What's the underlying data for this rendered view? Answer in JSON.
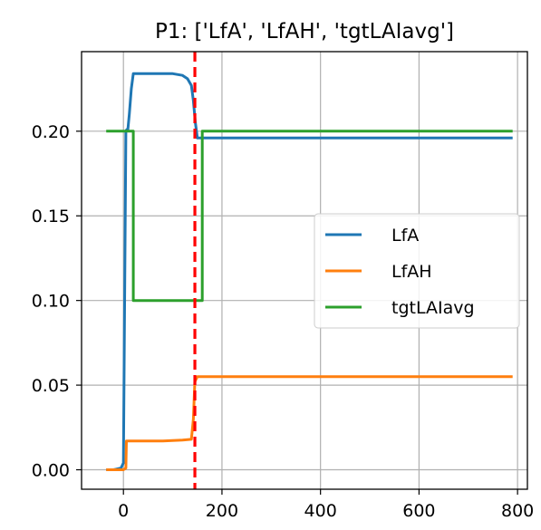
{
  "chart_data": {
    "type": "line",
    "title": "P1: ['LfA', 'LfAH', 'tgtLAIavg']",
    "xlabel": "",
    "ylabel": "",
    "xlim": [
      -85,
      820
    ],
    "ylim": [
      -0.0115,
      0.247
    ],
    "grid": true,
    "legend_placement": "center-right",
    "x_ticks": [
      0,
      200,
      400,
      600,
      800
    ],
    "x_tick_labels": [
      "0",
      "200",
      "400",
      "600",
      "800"
    ],
    "y_ticks": [
      0.0,
      0.05,
      0.1,
      0.15,
      0.2
    ],
    "y_tick_labels": [
      "0.00",
      "0.05",
      "0.10",
      "0.15",
      "0.20"
    ],
    "vline": {
      "x": 145,
      "color": "#ff0000",
      "style": "dashed"
    },
    "series": [
      {
        "name": "LfA",
        "color": "#1f77b4",
        "x": [
          -35,
          -20,
          -5,
          0,
          3,
          5,
          7,
          9,
          12,
          16,
          20,
          40,
          60,
          80,
          100,
          120,
          130,
          138,
          142,
          146,
          150,
          160,
          790
        ],
        "y": [
          0.0,
          0.0,
          0.001,
          0.004,
          0.12,
          0.2,
          0.201,
          0.201,
          0.21,
          0.225,
          0.234,
          0.234,
          0.234,
          0.234,
          0.234,
          0.233,
          0.231,
          0.227,
          0.218,
          0.205,
          0.196,
          0.196,
          0.196
        ]
      },
      {
        "name": "LfAH",
        "color": "#ff7f0e",
        "x": [
          -35,
          0,
          5,
          6,
          80,
          120,
          138,
          142,
          145,
          150,
          160,
          790
        ],
        "y": [
          0.0,
          0.0,
          0.001,
          0.017,
          0.017,
          0.0175,
          0.018,
          0.03,
          0.052,
          0.055,
          0.055,
          0.055
        ]
      },
      {
        "name": "tgtLAIavg",
        "color": "#2ca02c",
        "x": [
          -35,
          20,
          20,
          160,
          160,
          790
        ],
        "y": [
          0.2,
          0.2,
          0.1,
          0.1,
          0.2,
          0.2
        ]
      }
    ]
  }
}
